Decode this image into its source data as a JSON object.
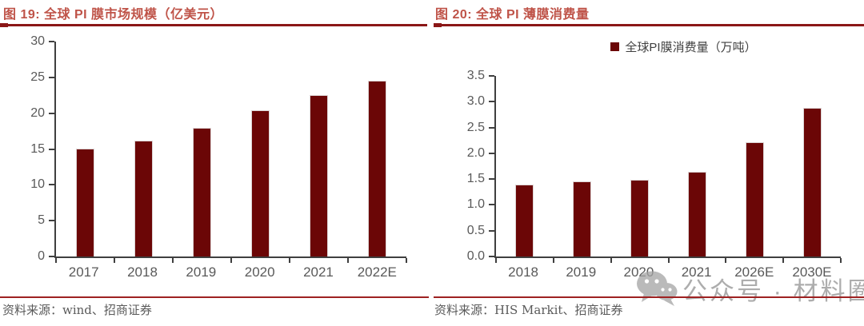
{
  "colors": {
    "bar": "#6b0606",
    "title_text": "#bf5348",
    "title_underline": "#8b1717",
    "source_divider": "#9e2121",
    "axis": "#3f3f3f",
    "tick_label": "#595959",
    "source_text": "#5a5a5a",
    "watermark": "#adadad"
  },
  "charts": [
    {
      "title": "图 19: 全球 PI 膜市场规模（亿美元）",
      "source": "资料来源：wind、招商证券"
    },
    {
      "title": "图 20: 全球 PI 薄膜消费量",
      "legend_label": "全球PI膜消费量（万吨）",
      "source": "资料来源：HIS Markit、招商证券"
    }
  ],
  "watermark": {
    "icon": "wechat-icon",
    "text": "公众号 · 材料圈"
  },
  "chart_data": [
    {
      "type": "bar",
      "title": "全球 PI 膜市场规模（亿美元）",
      "categories": [
        "2017",
        "2018",
        "2019",
        "2020",
        "2021",
        "2022E"
      ],
      "values": [
        15.1,
        16.2,
        18.0,
        20.4,
        22.5,
        24.5
      ],
      "ylim": [
        0,
        30
      ],
      "ytick_labels": [
        "0",
        "5",
        "10",
        "15",
        "20",
        "25",
        "30"
      ],
      "grid": false,
      "legend": null,
      "bar_color": "#6b0606"
    },
    {
      "type": "bar",
      "title": "全球 PI 薄膜消费量",
      "legend": [
        "全球PI膜消费量（万吨）"
      ],
      "legend_position": "top-center",
      "categories": [
        "2018",
        "2019",
        "2020",
        "2021",
        "2026E",
        "2030E"
      ],
      "values": [
        1.4,
        1.46,
        1.48,
        1.64,
        2.21,
        2.88
      ],
      "ylim": [
        0,
        3.5
      ],
      "ytick_labels": [
        "0.0",
        "0.5",
        "1.0",
        "1.5",
        "2.0",
        "2.5",
        "3.0",
        "3.5"
      ],
      "grid": false,
      "bar_color": "#6b0606"
    }
  ]
}
